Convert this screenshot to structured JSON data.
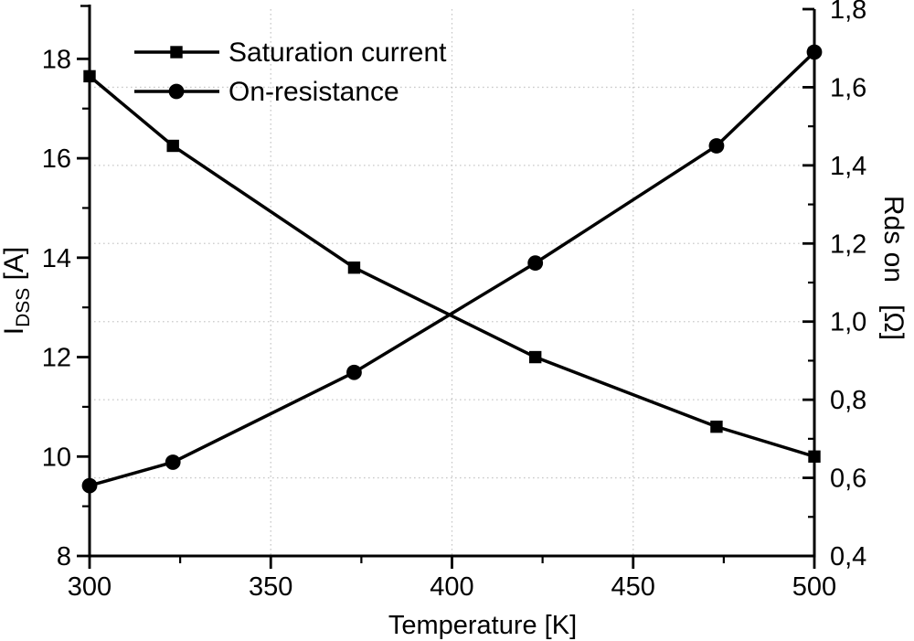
{
  "chart_data": {
    "type": "line",
    "title": "",
    "xlabel": "Temperature [K]",
    "ylabel_left": {
      "symbol": "I",
      "subscript": "DSS",
      "unit": " [A]"
    },
    "ylabel_right": {
      "label": "Rds on",
      "unit": "[Ω]"
    },
    "xlim": [
      300,
      500
    ],
    "ylim_left": [
      8,
      19
    ],
    "ylim_right": [
      0.4,
      1.8
    ],
    "x": [
      300,
      323,
      373,
      423,
      473,
      500
    ],
    "series": [
      {
        "name": "Saturation current",
        "axis": "left",
        "marker": "square",
        "color": "#000000",
        "values": [
          17.65,
          16.25,
          13.8,
          12.0,
          10.6,
          10.0
        ]
      },
      {
        "name": "On-resistance",
        "axis": "right",
        "marker": "circle",
        "color": "#000000",
        "values": [
          0.58,
          0.64,
          0.87,
          1.15,
          1.45,
          1.69
        ]
      }
    ],
    "x_ticks": {
      "major": [
        300,
        350,
        400,
        450,
        500
      ],
      "minor": [
        325,
        375,
        425,
        475
      ],
      "labels": [
        "300",
        "350",
        "400",
        "450",
        "500"
      ]
    },
    "left_ticks": {
      "major": [
        8,
        10,
        12,
        14,
        16,
        18
      ],
      "minor": [
        9,
        11,
        13,
        15,
        17
      ],
      "labels": [
        "8",
        "10",
        "12",
        "14",
        "16",
        "18"
      ]
    },
    "right_ticks": {
      "major": [
        0.4,
        0.6,
        0.8,
        1.0,
        1.2,
        1.4,
        1.6,
        1.8
      ],
      "minor": [
        0.5,
        0.7,
        0.9,
        1.1,
        1.3,
        1.5,
        1.7
      ],
      "labels": [
        "0,4",
        "0,6",
        "0,8",
        "1,0",
        "1,2",
        "1,4",
        "1,6",
        "1,8"
      ]
    },
    "grid": {
      "vertical_at": [
        350,
        400,
        450
      ],
      "horizontal_at_right": [
        0.6,
        0.8,
        1.0,
        1.2,
        1.4,
        1.6
      ],
      "style": "dotted",
      "color": "#c9c9c9"
    },
    "legend": {
      "position": "top-left",
      "entries": [
        "Saturation current",
        "On-resistance"
      ]
    },
    "colors": {
      "foreground": "#000000",
      "background": "#ffffff"
    }
  }
}
